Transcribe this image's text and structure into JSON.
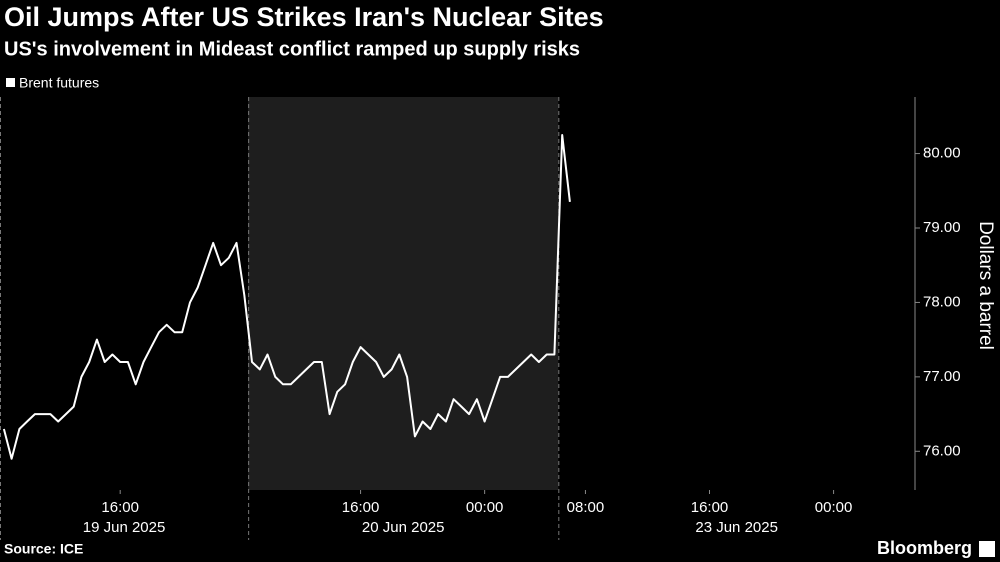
{
  "chart_data": {
    "type": "line",
    "title": "Oil Jumps After US Strikes Iran's Nuclear Sites",
    "subtitle": "US's involvement in Mideast conflict ramped up supply risks",
    "y_axis_label": "Dollars a barrel",
    "source": "Source: ICE",
    "brand": "Bloomberg",
    "days": [
      "19 Jun 2025",
      "20 Jun 2025",
      "23 Jun 2025"
    ],
    "shaded_day": "20 Jun 2025",
    "x": [
      "19 Jun 2025 08:30",
      "19 Jun 2025 09:00",
      "19 Jun 2025 09:30",
      "19 Jun 2025 10:00",
      "19 Jun 2025 10:30",
      "19 Jun 2025 11:00",
      "19 Jun 2025 11:30",
      "19 Jun 2025 12:00",
      "19 Jun 2025 12:30",
      "19 Jun 2025 13:00",
      "19 Jun 2025 13:30",
      "19 Jun 2025 14:00",
      "19 Jun 2025 14:30",
      "19 Jun 2025 15:00",
      "19 Jun 2025 15:30",
      "19 Jun 2025 16:00",
      "19 Jun 2025 16:30",
      "19 Jun 2025 17:00",
      "19 Jun 2025 17:30",
      "19 Jun 2025 18:00",
      "19 Jun 2025 18:30",
      "19 Jun 2025 19:00",
      "19 Jun 2025 19:30",
      "19 Jun 2025 20:00",
      "19 Jun 2025 20:30",
      "19 Jun 2025 21:00",
      "19 Jun 2025 21:30",
      "19 Jun 2025 22:00",
      "19 Jun 2025 22:30",
      "19 Jun 2025 23:00",
      "19 Jun 2025 23:30",
      "19 Jun 2025 00:00",
      "20 Jun 2025 09:00",
      "20 Jun 2025 09:30",
      "20 Jun 2025 10:00",
      "20 Jun 2025 10:30",
      "20 Jun 2025 11:00",
      "20 Jun 2025 11:30",
      "20 Jun 2025 12:00",
      "20 Jun 2025 12:30",
      "20 Jun 2025 13:00",
      "20 Jun 2025 13:30",
      "20 Jun 2025 14:00",
      "20 Jun 2025 14:30",
      "20 Jun 2025 15:00",
      "20 Jun 2025 15:30",
      "20 Jun 2025 16:00",
      "20 Jun 2025 16:30",
      "20 Jun 2025 17:00",
      "20 Jun 2025 17:30",
      "20 Jun 2025 18:00",
      "20 Jun 2025 18:30",
      "20 Jun 2025 19:00",
      "20 Jun 2025 19:30",
      "20 Jun 2025 20:00",
      "20 Jun 2025 20:30",
      "20 Jun 2025 21:00",
      "20 Jun 2025 21:30",
      "20 Jun 2025 22:00",
      "20 Jun 2025 22:30",
      "20 Jun 2025 23:00",
      "20 Jun 2025 23:30",
      "20 Jun 2025 00:00",
      "20 Jun 2025 00:30",
      "20 Jun 2025 01:00",
      "20 Jun 2025 01:30",
      "20 Jun 2025 02:00",
      "20 Jun 2025 02:30",
      "20 Jun 2025 03:00",
      "20 Jun 2025 03:30",
      "20 Jun 2025 04:00",
      "20 Jun 2025 04:30",
      "23 Jun 2025 06:30",
      "23 Jun 2025 07:00",
      "23 Jun 2025 07:30",
      "23 Jun 2025 08:00",
      "23 Jun 2025 08:30",
      "23 Jun 2025 09:00",
      "23 Jun 2025 09:30",
      "23 Jun 2025 10:00",
      "23 Jun 2025 10:30",
      "23 Jun 2025 11:00",
      "23 Jun 2025 11:30",
      "23 Jun 2025 12:00",
      "23 Jun 2025 12:30",
      "23 Jun 2025 13:00",
      "23 Jun 2025 13:30",
      "23 Jun 2025 14:00",
      "23 Jun 2025 14:30",
      "23 Jun 2025 15:00",
      "23 Jun 2025 15:30",
      "23 Jun 2025 16:00",
      "23 Jun 2025 16:30",
      "23 Jun 2025 17:00",
      "23 Jun 2025 17:30",
      "23 Jun 2025 18:00",
      "23 Jun 2025 18:30",
      "23 Jun 2025 19:00",
      "23 Jun 2025 19:30",
      "23 Jun 2025 20:00",
      "23 Jun 2025 20:30",
      "23 Jun 2025 21:00",
      "23 Jun 2025 21:30",
      "23 Jun 2025 22:00",
      "23 Jun 2025 22:30",
      "23 Jun 2025 23:00",
      "23 Jun 2025 23:30",
      "23 Jun 2025 00:00",
      "23 Jun 2025 00:30",
      "23 Jun 2025 01:00",
      "23 Jun 2025 01:30",
      "23 Jun 2025 02:00",
      "23 Jun 2025 02:30",
      "23 Jun 2025 03:00",
      "23 Jun 2025 03:30",
      "23 Jun 2025 04:00",
      "23 Jun 2025 04:30",
      "23 Jun 2025 05:00"
    ],
    "xticks": [
      {
        "value": "19 Jun 2025 16:00",
        "label": "16:00"
      },
      {
        "value": "20 Jun 2025 16:00",
        "label": "16:00"
      },
      {
        "value": "20 Jun 2025 00:00",
        "label": "00:00"
      },
      {
        "value": "23 Jun 2025 08:00",
        "label": "08:00"
      },
      {
        "value": "23 Jun 2025 16:00",
        "label": "16:00"
      },
      {
        "value": "23 Jun 2025 00:00",
        "label": "00:00"
      }
    ],
    "series": [
      {
        "name": "Brent futures",
        "color": "#ffffff",
        "values": [
          76.3,
          75.9,
          76.3,
          76.4,
          76.5,
          76.5,
          76.5,
          76.4,
          76.5,
          76.6,
          77.0,
          77.2,
          77.5,
          77.2,
          77.3,
          77.2,
          77.2,
          76.9,
          77.2,
          77.4,
          77.6,
          77.7,
          77.6,
          77.6,
          78.0,
          78.2,
          78.5,
          78.8,
          78.5,
          78.6,
          78.8,
          78.1,
          77.2,
          77.1,
          77.3,
          77.0,
          76.9,
          76.9,
          77.0,
          77.1,
          77.2,
          77.2,
          76.5,
          76.8,
          76.9,
          77.2,
          77.4,
          77.3,
          77.2,
          77.0,
          77.1,
          77.3,
          77.0,
          76.2,
          76.4,
          76.3,
          76.5,
          76.4,
          76.7,
          76.6,
          76.5,
          76.7,
          76.4,
          76.7,
          77.0,
          77.0,
          77.1,
          77.2,
          77.3,
          77.2,
          77.3,
          77.3,
          80.25,
          79.35,
          null,
          null,
          null,
          null,
          null,
          null,
          null,
          null,
          null,
          null,
          null,
          null,
          null,
          null,
          null,
          null,
          null,
          null,
          null,
          null,
          null,
          null,
          null,
          null,
          null,
          null,
          null,
          null,
          null,
          null,
          null,
          null,
          null,
          null,
          null,
          null,
          null,
          null,
          null,
          null,
          null,
          null,
          null,
          null
        ]
      }
    ],
    "ylim": [
      75.48,
      80.76
    ],
    "yticks": [
      {
        "value": 76,
        "label": "76.00"
      },
      {
        "value": 77,
        "label": "77.00"
      },
      {
        "value": 78,
        "label": "78.00"
      },
      {
        "value": 79,
        "label": "79.00"
      },
      {
        "value": 80,
        "label": "80.00"
      }
    ],
    "y_axis_side": "right"
  }
}
